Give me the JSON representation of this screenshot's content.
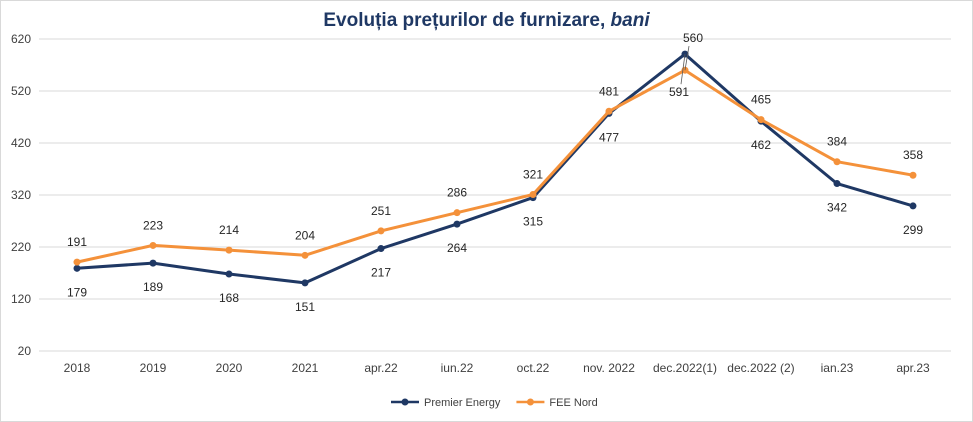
{
  "chart_data": {
    "type": "line",
    "title": "Evoluția prețurilor de furnizare,",
    "title_unit": "bani",
    "categories": [
      "2018",
      "2019",
      "2020",
      "2021",
      "apr.22",
      "iun.22",
      "oct.22",
      "nov. 2022",
      "dec.2022(1)",
      "dec.2022 (2)",
      "ian.23",
      "apr.23"
    ],
    "y_ticks": [
      20,
      120,
      220,
      320,
      420,
      520,
      620
    ],
    "ylim": [
      20,
      620
    ],
    "grid": true,
    "legend_position": "bottom",
    "series": [
      {
        "name": "Premier Energy",
        "color": "#1f3864",
        "values": [
          179,
          189,
          168,
          151,
          217,
          264,
          315,
          477,
          591,
          462,
          342,
          299
        ]
      },
      {
        "name": "FEE Nord",
        "color": "#f4913a",
        "values": [
          191,
          223,
          214,
          204,
          251,
          286,
          321,
          481,
          560,
          465,
          384,
          358
        ]
      }
    ]
  }
}
